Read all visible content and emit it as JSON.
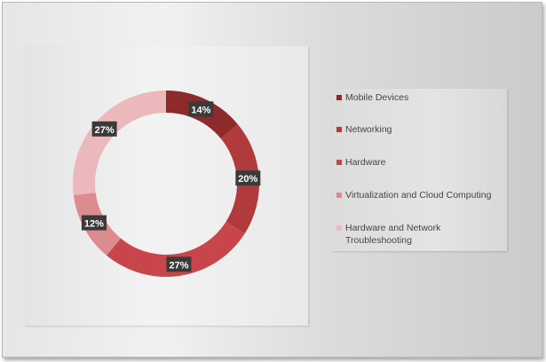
{
  "chart_data": {
    "type": "pie",
    "donut": true,
    "categories": [
      "Mobile Devices",
      "Networking",
      "Hardware",
      "Virtualization and Cloud Computing",
      "Hardware and Network Troubleshooting"
    ],
    "values": [
      14,
      20,
      27,
      12,
      27
    ],
    "data_labels": [
      "14%",
      "20%",
      "27%",
      "12%",
      "27%"
    ],
    "colors": [
      "#8e2a2c",
      "#b13a3d",
      "#c8464b",
      "#dc8c8f",
      "#ebb9bb"
    ],
    "legend_position": "right",
    "title": ""
  }
}
